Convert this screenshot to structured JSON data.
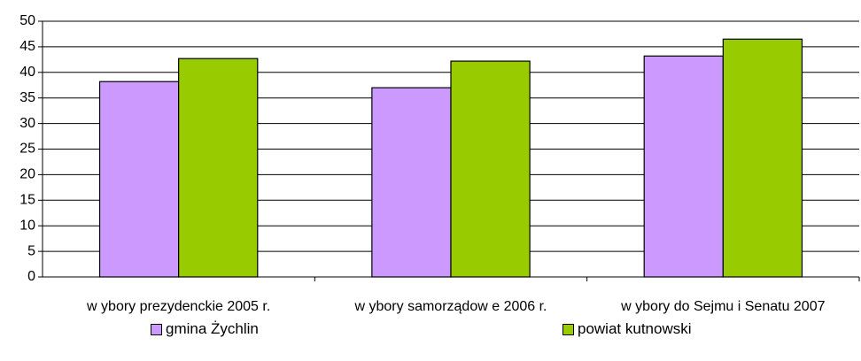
{
  "chart_data": {
    "type": "bar",
    "categories": [
      "w ybory prezydenckie 2005 r.",
      "w ybory samorządow e 2006 r.",
      "w ybory do Sejmu i Senatu 2007"
    ],
    "series": [
      {
        "name": "gmina Żychlin",
        "color": "#cc99ff",
        "values": [
          38.2,
          37.0,
          43.2
        ]
      },
      {
        "name": "powiat kutnowski",
        "color": "#99cc00",
        "values": [
          42.7,
          42.2,
          46.5
        ]
      }
    ],
    "ylim": [
      0,
      50
    ],
    "yticks": [
      0,
      5,
      10,
      15,
      20,
      25,
      30,
      35,
      40,
      45,
      50
    ],
    "grid": true,
    "legend": "bottom"
  }
}
